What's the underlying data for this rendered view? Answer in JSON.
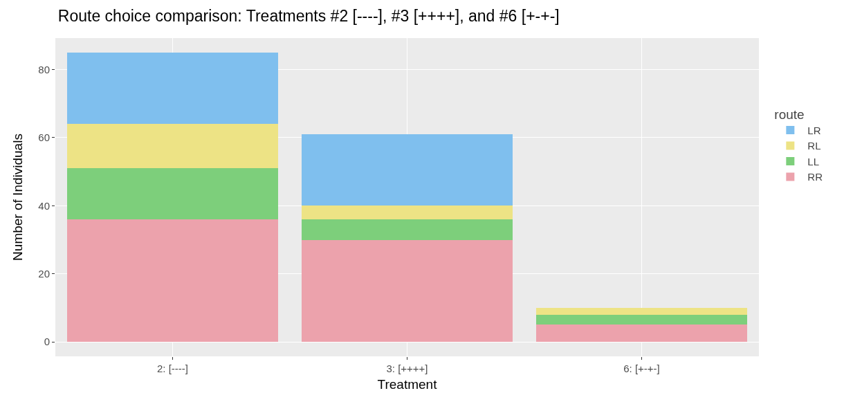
{
  "chart_data": {
    "type": "bar",
    "title": "Route choice comparison: Treatments #2 [----], #3 [++++], and #6 [+-+-]",
    "xlabel": "Treatment",
    "ylabel": "Number of Individuals",
    "legend_title": "route",
    "categories": [
      "2: [----]",
      "3: [++++]",
      "6: [+-+-]"
    ],
    "series": [
      {
        "name": "RR",
        "color": "#eca2ac",
        "values": [
          36,
          30,
          5
        ]
      },
      {
        "name": "LL",
        "color": "#7dcf7b",
        "values": [
          15,
          6,
          3
        ]
      },
      {
        "name": "RL",
        "color": "#ede385",
        "values": [
          13,
          4,
          2
        ]
      },
      {
        "name": "LR",
        "color": "#7fbfee",
        "values": [
          21,
          21,
          0
        ]
      }
    ],
    "stacked": true,
    "ylim": [
      -4.25,
      89.25
    ],
    "yticks": [
      0,
      20,
      40,
      60,
      80
    ],
    "grid": true,
    "legend": "right"
  }
}
